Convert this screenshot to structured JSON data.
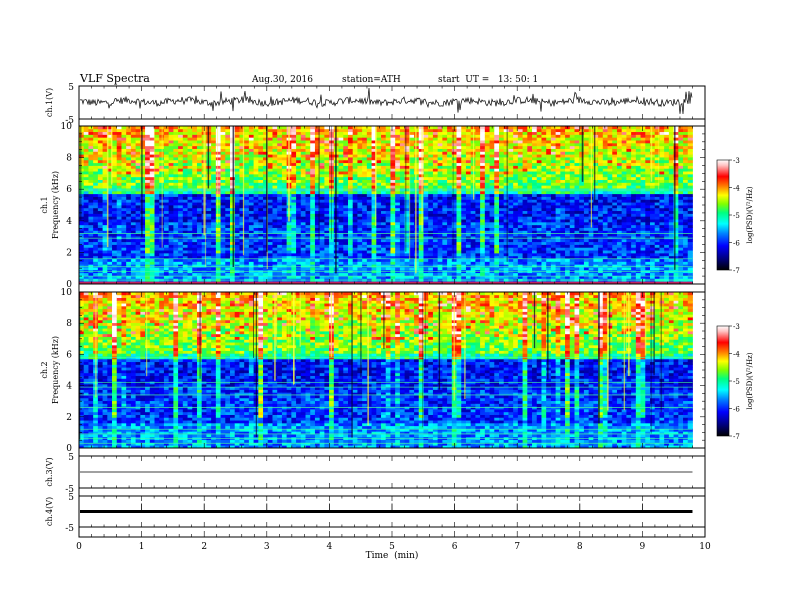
{
  "header": {
    "title": "VLF Spectra",
    "date": "Aug.30, 2016",
    "station": "station=ATH",
    "start": "start  UT =   13: 50: 1"
  },
  "chart_data": {
    "type": "heatmap",
    "time_axis": {
      "label": "Time  (min)",
      "range": [
        0,
        10
      ],
      "ticks": [
        "0",
        "1",
        "2",
        "3",
        "4",
        "5",
        "6",
        "7",
        "8",
        "9",
        "10"
      ],
      "data_end_min": 9.8
    },
    "panels": [
      {
        "id": "ch1-waveform",
        "ylabel": "ch.1(V)",
        "yticks": [
          "5",
          "-5"
        ],
        "yrange": [
          -5,
          5
        ],
        "description_value_level": 0.3
      },
      {
        "id": "ch1-spectrogram",
        "ylabel_channel": "ch.1",
        "ylabel": "Frequency  (kHz)",
        "yrange": [
          0,
          10
        ],
        "yticks": [
          "0",
          "2",
          "4",
          "6",
          "8",
          "10"
        ],
        "colorbar": {
          "label": "log(PSD)(V²/Hz)",
          "range": [
            -7,
            -3
          ],
          "ticks": [
            "-3",
            "-4",
            "-5",
            "-6",
            "-7"
          ]
        }
      },
      {
        "id": "ch2-spectrogram",
        "ylabel_channel": "ch.2",
        "ylabel": "Frequency  (kHz)",
        "yrange": [
          0,
          10
        ],
        "yticks": [
          "0",
          "2",
          "4",
          "6",
          "8",
          "10"
        ],
        "colorbar": {
          "label": "log(PSD)(V²/Hz)",
          "range": [
            -7,
            -3
          ],
          "ticks": [
            "-3",
            "-4",
            "-5",
            "-6",
            "-7"
          ]
        }
      },
      {
        "id": "ch3-waveform",
        "ylabel": "ch.3(V)",
        "yticks": [
          "5",
          "-5"
        ],
        "yrange": [
          -5,
          5
        ],
        "level": 0.0
      },
      {
        "id": "ch4-waveform",
        "ylabel": "ch.4(V)",
        "yticks": [
          "5",
          "-5"
        ],
        "yrange": [
          -5,
          5
        ],
        "level": 0.0
      }
    ],
    "colors": {
      "colormap": [
        "#000000",
        "#00007a",
        "#0000ff",
        "#0080ff",
        "#00ffff",
        "#00ff80",
        "#80ff00",
        "#ffff00",
        "#ff8000",
        "#ff0000",
        "#ffc0c0",
        "#ffffff"
      ]
    }
  }
}
